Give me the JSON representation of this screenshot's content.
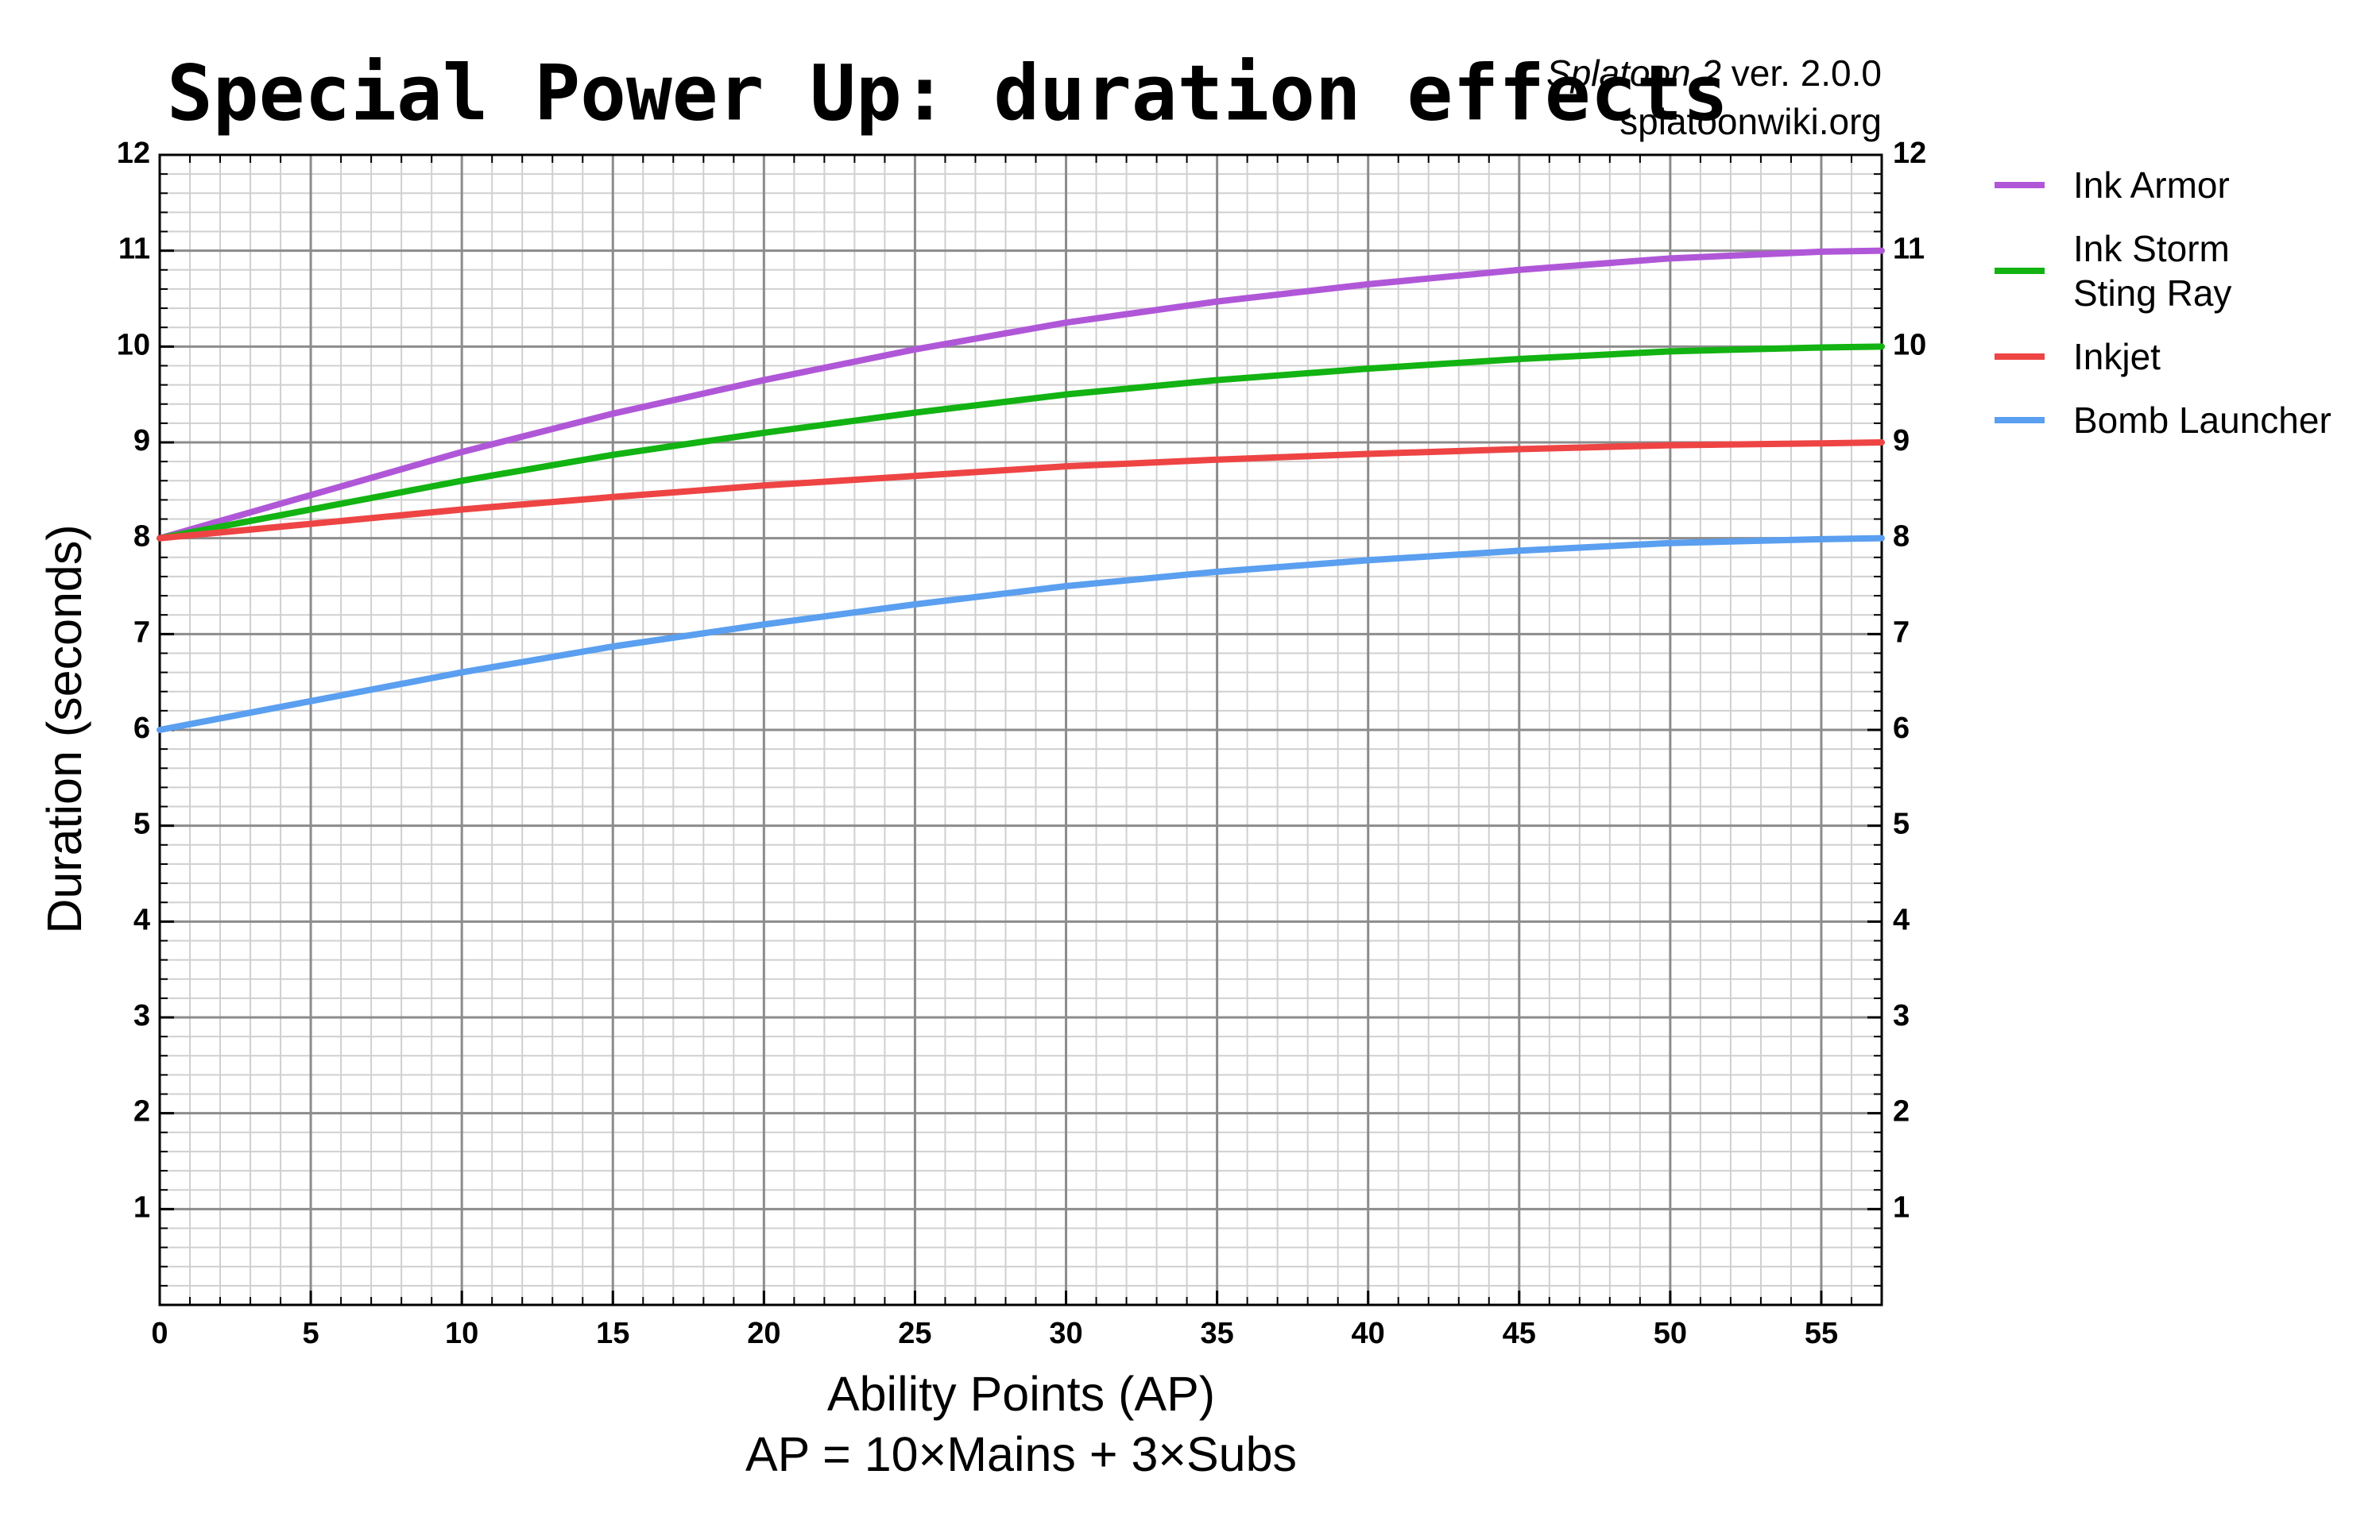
{
  "chart_data": {
    "type": "line",
    "title": "Special Power Up: duration effects",
    "game": "Splatoon 2",
    "version": "ver. 2.0.0",
    "site": "splatoonwiki.org",
    "x_label": "Ability Points (AP)",
    "x_label_2": "AP = 10×Mains + 3×Subs",
    "y_label": "Duration (seconds)",
    "x": [
      0,
      5,
      10,
      15,
      20,
      25,
      30,
      35,
      40,
      45,
      50,
      55,
      57
    ],
    "series": [
      {
        "name": "Ink Armor",
        "color": "#b057d8",
        "values": [
          8,
          8.45,
          8.9,
          9.3,
          9.65,
          9.97,
          10.25,
          10.47,
          10.65,
          10.8,
          10.92,
          10.99,
          11
        ]
      },
      {
        "name": "Ink Storm\nSting Ray",
        "color": "#12b312",
        "values": [
          8,
          8.3,
          8.6,
          8.87,
          9.1,
          9.31,
          9.5,
          9.65,
          9.77,
          9.87,
          9.95,
          9.99,
          10
        ]
      },
      {
        "name": "Inkjet",
        "color": "#ee4444",
        "values": [
          8,
          8.15,
          8.3,
          8.43,
          8.55,
          8.65,
          8.75,
          8.82,
          8.88,
          8.93,
          8.97,
          8.99,
          9
        ]
      },
      {
        "name": "Bomb Launcher",
        "color": "#5a9ff0",
        "values": [
          6,
          6.3,
          6.6,
          6.87,
          7.1,
          7.31,
          7.5,
          7.65,
          7.77,
          7.87,
          7.95,
          7.99,
          8
        ]
      }
    ],
    "xlim": [
      0,
      57
    ],
    "xticks": [
      0,
      5,
      10,
      15,
      20,
      25,
      30,
      35,
      40,
      45,
      50,
      55
    ],
    "ylim": [
      0,
      12
    ],
    "yticks": [
      1,
      2,
      3,
      4,
      5,
      6,
      7,
      8,
      9,
      10,
      11,
      12
    ],
    "grid": true,
    "minor_grid": true,
    "legend": "right"
  }
}
